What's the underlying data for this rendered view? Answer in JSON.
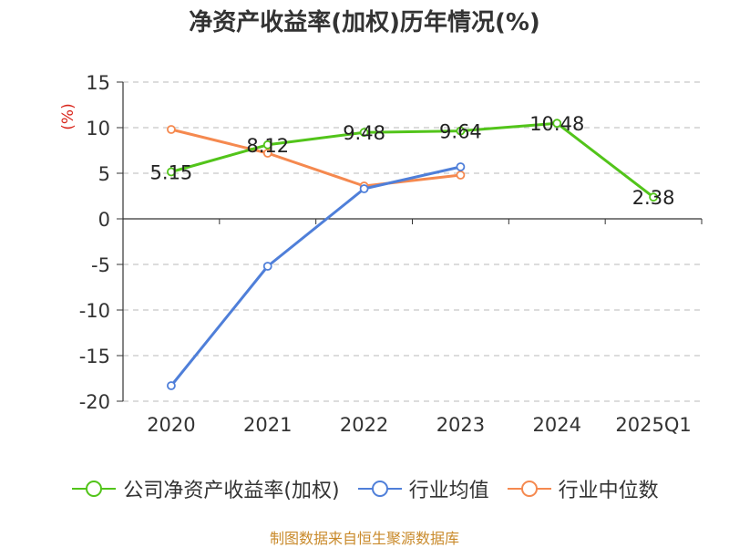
{
  "chart_data": {
    "type": "line",
    "title": "净资产收益率(加权)历年情况(%)",
    "ylabel": "(%)",
    "xlabel": "",
    "categories": [
      "2020",
      "2021",
      "2022",
      "2023",
      "2024",
      "2025Q1"
    ],
    "ylim": [
      -20,
      15
    ],
    "yticks": [
      15,
      10,
      5,
      0,
      -5,
      -10,
      -15,
      -20
    ],
    "grid": true,
    "legend_position": "bottom",
    "series": [
      {
        "name": "公司净资产收益率(加权)",
        "color": "#52c41a",
        "values": [
          5.15,
          8.12,
          9.48,
          9.64,
          10.48,
          2.38
        ],
        "labels": [
          "5.15",
          "8.12",
          "9.48",
          "9.64",
          "10.48",
          "2.38"
        ]
      },
      {
        "name": "行业均值",
        "color": "#4f7fd9",
        "values": [
          -18.3,
          -5.2,
          3.3,
          5.7,
          null,
          null
        ]
      },
      {
        "name": "行业中位数",
        "color": "#f5894f",
        "values": [
          9.8,
          7.2,
          3.6,
          4.8,
          null,
          null
        ]
      }
    ]
  },
  "source": "制图数据来自恒生聚源数据库"
}
